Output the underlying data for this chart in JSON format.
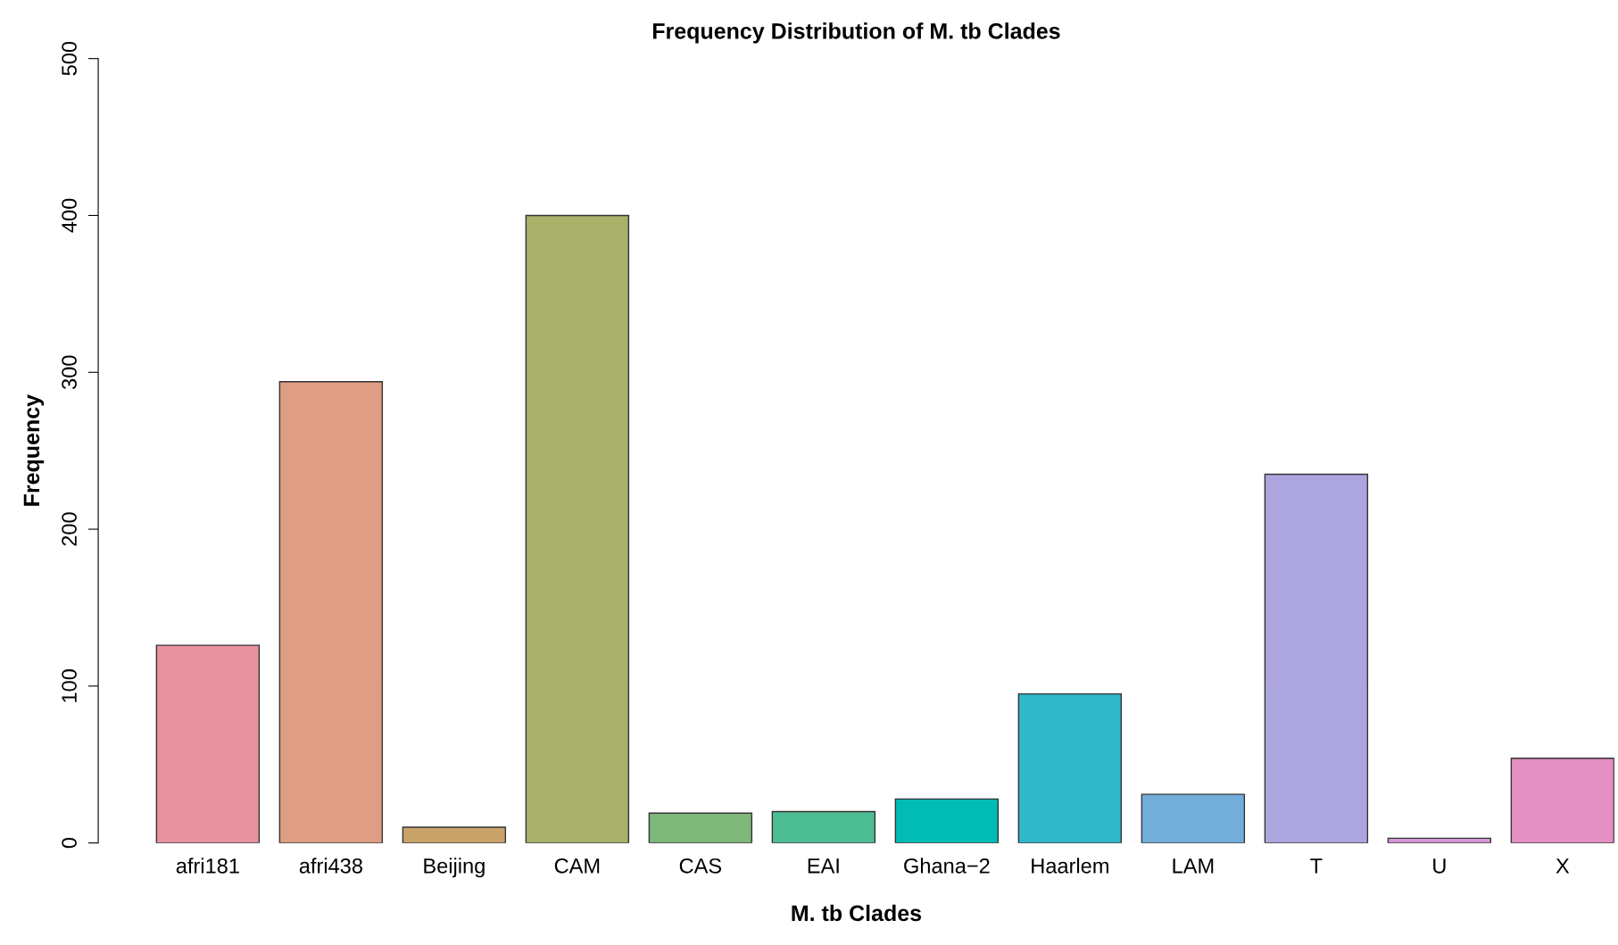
{
  "chart_data": {
    "type": "bar",
    "title": "Frequency Distribution of M. tb Clades",
    "xlabel": "M. tb Clades",
    "ylabel": "Frequency",
    "categories": [
      "afri181",
      "afri438",
      "Beijing",
      "CAM",
      "CAS",
      "EAI",
      "Ghana−2",
      "Haarlem",
      "LAM",
      "T",
      "U",
      "X"
    ],
    "values": [
      126,
      294,
      10,
      400,
      19,
      20,
      28,
      95,
      31,
      235,
      3,
      54
    ],
    "colors": [
      "#e8919f",
      "#e09d85",
      "#c9a36a",
      "#aab16a",
      "#7fb77a",
      "#4dbd93",
      "#00bcb4",
      "#30b7c9",
      "#73aedb",
      "#aca5de",
      "#d597d8",
      "#e590c2"
    ],
    "ylim": [
      0,
      500
    ],
    "yticks": [
      0,
      100,
      200,
      300,
      400,
      500
    ],
    "grid": false,
    "legend": false
  }
}
